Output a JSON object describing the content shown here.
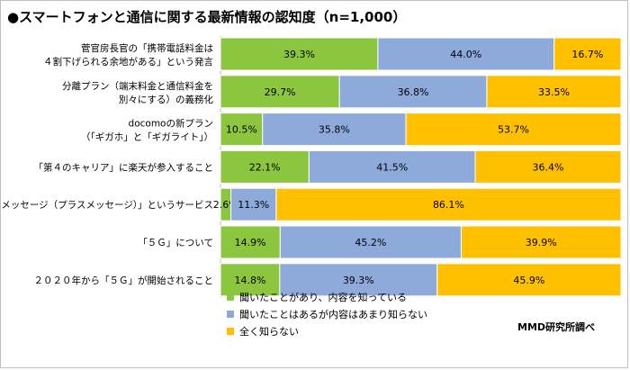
{
  "title": "●スマートフォンと通信に関する最新情報の認知度（n=1,000）",
  "credit": "MMD研究所調べ",
  "colors": {
    "series": [
      "#8cc63f",
      "#8eaadb",
      "#ffc000"
    ]
  },
  "chart_data": {
    "type": "bar",
    "orientation": "horizontal",
    "stacked": "percent",
    "categories": [
      [
        "菅官房長官の「携帯電話料金は",
        "４割下げられる余地がある」という発言"
      ],
      [
        "分離プラン（端末料金と通信料金を",
        "別々にする）の義務化"
      ],
      [
        "docomoの新プラン",
        "（「ギガホ」と「ギガライト」）"
      ],
      [
        "「第４のキャリア」に楽天が参入すること"
      ],
      [
        "「＋メッセージ（プラスメッセージ）」というサービス"
      ],
      [
        "「５Ｇ」について"
      ],
      [
        "２０２０年から「５Ｇ」が開始されること"
      ]
    ],
    "series": [
      {
        "name": "聞いたことがあり、内容を知っている",
        "values": [
          39.3,
          29.7,
          10.5,
          22.1,
          2.6,
          14.9,
          14.8
        ]
      },
      {
        "name": "聞いたことはあるが内容はあまり知らない",
        "values": [
          44.0,
          36.8,
          35.8,
          41.5,
          11.3,
          45.2,
          39.3
        ]
      },
      {
        "name": "全く知らない",
        "values": [
          16.7,
          33.5,
          53.7,
          36.4,
          86.1,
          39.9,
          45.9
        ]
      }
    ],
    "value_format": "{v}%",
    "legend_position": "bottom-left",
    "grid": false
  }
}
